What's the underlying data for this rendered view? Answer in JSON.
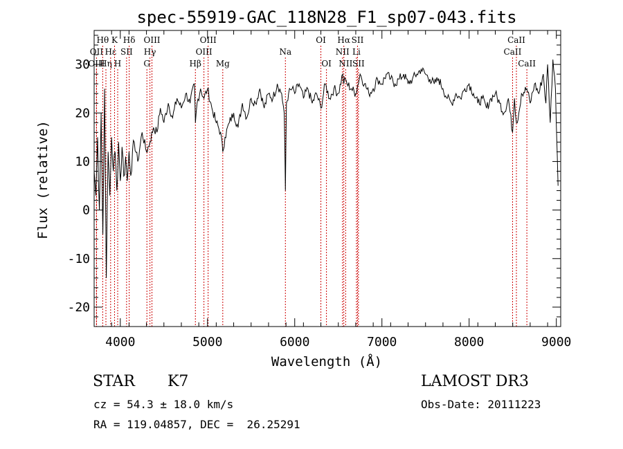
{
  "chart_data": {
    "type": "line",
    "title": "spec-55919-GAC_118N28_F1_sp07-043.fits",
    "xlabel": "Wavelength (Å)",
    "ylabel": "Flux (relative)",
    "xlim": [
      3700,
      9050
    ],
    "ylim": [
      -24,
      37
    ],
    "xticks": [
      4000,
      5000,
      6000,
      7000,
      8000,
      9000
    ],
    "yticks": [
      -20,
      -10,
      0,
      10,
      20,
      30
    ],
    "series": [
      {
        "name": "flux",
        "x": [
          3700,
          3720,
          3740,
          3760,
          3780,
          3800,
          3820,
          3840,
          3860,
          3880,
          3900,
          3920,
          3940,
          3960,
          3980,
          4000,
          4020,
          4040,
          4060,
          4080,
          4100,
          4130,
          4160,
          4200,
          4250,
          4300,
          4340,
          4380,
          4420,
          4460,
          4500,
          4550,
          4600,
          4650,
          4700,
          4750,
          4800,
          4850,
          4861,
          4880,
          4920,
          4960,
          5000,
          5050,
          5100,
          5150,
          5175,
          5200,
          5250,
          5300,
          5350,
          5400,
          5450,
          5500,
          5550,
          5600,
          5650,
          5700,
          5750,
          5800,
          5850,
          5880,
          5893,
          5905,
          5930,
          5970,
          6000,
          6050,
          6100,
          6150,
          6200,
          6250,
          6300,
          6350,
          6400,
          6450,
          6500,
          6550,
          6563,
          6580,
          6600,
          6650,
          6700,
          6750,
          6800,
          6850,
          6900,
          6950,
          7000,
          7050,
          7100,
          7150,
          7200,
          7250,
          7300,
          7350,
          7400,
          7450,
          7500,
          7550,
          7600,
          7650,
          7700,
          7750,
          7800,
          7850,
          7900,
          7950,
          8000,
          8050,
          8100,
          8150,
          8200,
          8250,
          8300,
          8350,
          8400,
          8450,
          8498,
          8520,
          8542,
          8570,
          8600,
          8662,
          8700,
          8750,
          8800,
          8850,
          8880,
          8900,
          8930,
          8960,
          8990,
          9020
        ],
        "values": [
          8,
          3,
          15,
          0,
          20,
          -5,
          25,
          -14,
          12,
          3,
          15,
          8,
          12,
          4,
          14,
          6,
          13,
          7,
          11,
          6,
          12,
          8,
          14,
          10,
          16,
          12,
          14,
          17,
          16,
          21,
          18,
          22,
          19,
          23,
          21,
          24,
          22,
          26,
          18,
          22,
          25,
          23,
          25,
          21,
          18,
          16,
          12,
          15,
          18,
          20,
          17,
          22,
          19,
          23,
          22,
          25,
          21,
          24,
          23,
          26,
          24,
          20,
          4,
          22,
          24,
          25,
          24,
          26,
          23,
          25,
          22,
          24,
          21,
          26,
          23,
          25,
          24,
          28,
          26,
          27,
          26,
          25,
          24,
          28,
          26,
          24,
          25,
          27,
          26,
          28,
          27,
          26,
          27,
          28,
          26,
          27,
          28,
          29,
          28,
          27,
          26,
          27,
          25,
          23,
          22,
          24,
          23,
          25,
          26,
          24,
          22,
          23,
          21,
          23,
          24,
          22,
          20,
          23,
          16,
          23,
          18,
          20,
          24,
          25,
          22,
          26,
          24,
          28,
          22,
          30,
          18,
          31,
          25,
          5
        ]
      }
    ],
    "spectral_lines": [
      {
        "label": "Hθ",
        "x": 3798,
        "row": 1
      },
      {
        "label": "OII",
        "x": 3727,
        "row": 2
      },
      {
        "label": "OIII",
        "x": 3727,
        "row": 3
      },
      {
        "label": "Hη",
        "x": 3835,
        "row": 3
      },
      {
        "label": "Hε",
        "x": 3889,
        "row": 2
      },
      {
        "label": "K",
        "x": 3934,
        "row": 1
      },
      {
        "label": "H",
        "x": 3970,
        "row": 3
      },
      {
        "label": "SII",
        "x": 4072,
        "row": 2
      },
      {
        "label": "Hδ",
        "x": 4102,
        "row": 1
      },
      {
        "label": "OIII",
        "x": 4363,
        "row": 1
      },
      {
        "label": "Hγ",
        "x": 4340,
        "row": 2
      },
      {
        "label": "G",
        "x": 4305,
        "row": 3
      },
      {
        "label": "OIII",
        "x": 5007,
        "row": 1
      },
      {
        "label": "OIII",
        "x": 4959,
        "row": 2
      },
      {
        "label": "Hβ",
        "x": 4861,
        "row": 3
      },
      {
        "label": "Mg",
        "x": 5175,
        "row": 3
      },
      {
        "label": "Na",
        "x": 5893,
        "row": 2
      },
      {
        "label": "OI",
        "x": 6300,
        "row": 1
      },
      {
        "label": "OI",
        "x": 6364,
        "row": 3
      },
      {
        "label": "Hα",
        "x": 6563,
        "row": 1
      },
      {
        "label": "NII",
        "x": 6548,
        "row": 2
      },
      {
        "label": "NII",
        "x": 6584,
        "row": 3
      },
      {
        "label": "SII",
        "x": 6720,
        "row": 1
      },
      {
        "label": "Li",
        "x": 6708,
        "row": 2
      },
      {
        "label": "SII",
        "x": 6731,
        "row": 3
      },
      {
        "label": "CaII",
        "x": 8542,
        "row": 1
      },
      {
        "label": "CaII",
        "x": 8498,
        "row": 2
      },
      {
        "label": "CaII",
        "x": 8662,
        "row": 3
      }
    ],
    "line_color": "#cc0000"
  },
  "info": {
    "class": "STAR",
    "subclass": "K7",
    "redshift": "cz = 54.3 ± 18.0 km/s",
    "coords": "RA = 119.04857, DEC =  26.25291",
    "survey": "LAMOST DR3",
    "obs_date": "Obs-Date: 20111223"
  }
}
